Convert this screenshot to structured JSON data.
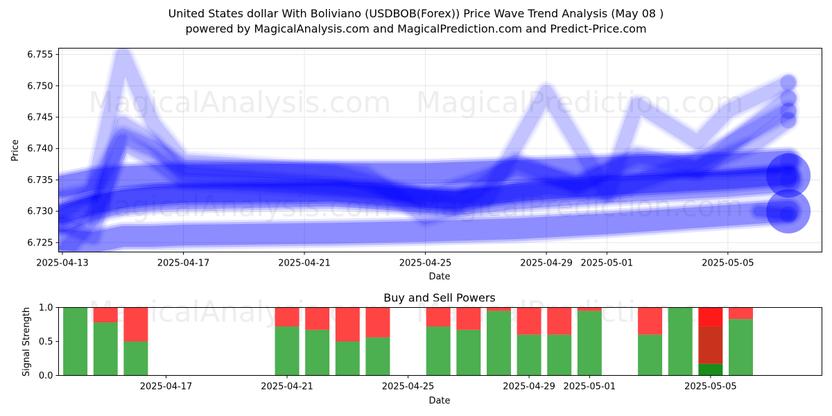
{
  "figure": {
    "title": "United States dollar With Boliviano (USDBOB(Forex)) Price Wave Trend Analysis (May 08 )",
    "subtitle": "powered by MagicalAnalysis.com and MagicalPrediction.com and Predict-Price.com",
    "watermarks": [
      "MagicalAnalysis.com",
      "MagicalPrediction.com"
    ]
  },
  "chart_data": [
    {
      "type": "line",
      "title": "",
      "xlabel": "Date",
      "ylabel": "Price",
      "xlim": [
        "2025-04-13",
        "2025-05-08"
      ],
      "ylim": [
        6.7235,
        6.756
      ],
      "x_ticks": [
        "2025-04-13",
        "2025-04-17",
        "2025-04-21",
        "2025-04-25",
        "2025-04-29",
        "2025-05-01",
        "2025-05-05"
      ],
      "y_ticks": [
        6.725,
        6.73,
        6.735,
        6.74,
        6.745,
        6.75,
        6.755
      ],
      "grid": true,
      "line_color": "#0000ff",
      "series": [
        {
          "x": [
            "2025-04-13",
            "2025-04-14",
            "2025-04-15",
            "2025-04-16",
            "2025-04-17",
            "2025-04-22",
            "2025-04-24",
            "2025-04-26",
            "2025-04-28",
            "2025-05-01",
            "2025-05-05",
            "2025-05-07"
          ],
          "values": [
            6.7295,
            6.731,
            6.732,
            6.7325,
            6.7328,
            6.733,
            6.7322,
            6.7318,
            6.733,
            6.734,
            6.735,
            6.7357
          ]
        },
        {
          "x": [
            "2025-04-13",
            "2025-04-14",
            "2025-04-15",
            "2025-04-16",
            "2025-04-17",
            "2025-04-22",
            "2025-04-24",
            "2025-04-26",
            "2025-04-28",
            "2025-05-01",
            "2025-05-05",
            "2025-05-07"
          ],
          "values": [
            6.7285,
            6.7305,
            6.7315,
            6.732,
            6.7322,
            6.7326,
            6.732,
            6.7312,
            6.7322,
            6.7332,
            6.7342,
            6.735
          ]
        },
        {
          "x": [
            "2025-04-13",
            "2025-04-14",
            "2025-04-15",
            "2025-04-16",
            "2025-04-17",
            "2025-04-22",
            "2025-04-25",
            "2025-04-28",
            "2025-05-01",
            "2025-05-05",
            "2025-05-07"
          ],
          "values": [
            6.734,
            6.735,
            6.7355,
            6.7357,
            6.7358,
            6.736,
            6.736,
            6.7365,
            6.737,
            6.7375,
            6.738
          ]
        },
        {
          "x": [
            "2025-04-13",
            "2025-04-14",
            "2025-04-15",
            "2025-04-16",
            "2025-04-17",
            "2025-04-21",
            "2025-04-24",
            "2025-04-27",
            "2025-04-29",
            "2025-05-01",
            "2025-05-04",
            "2025-05-07"
          ],
          "values": [
            6.723,
            6.729,
            6.741,
            6.7385,
            6.735,
            6.734,
            6.733,
            6.7325,
            6.734,
            6.733,
            6.738,
            6.746
          ]
        },
        {
          "x": [
            "2025-04-13",
            "2025-04-14",
            "2025-04-15",
            "2025-04-16",
            "2025-04-17",
            "2025-04-22",
            "2025-04-25",
            "2025-04-28",
            "2025-04-30",
            "2025-05-02",
            "2025-05-04",
            "2025-05-07"
          ],
          "values": [
            6.732,
            6.733,
            6.742,
            6.74,
            6.737,
            6.736,
            6.732,
            6.737,
            6.7345,
            6.738,
            6.7365,
            6.748
          ]
        },
        {
          "x": [
            "2025-04-13",
            "2025-04-14",
            "2025-04-15",
            "2025-04-16",
            "2025-04-17",
            "2025-04-20",
            "2025-04-23",
            "2025-04-25",
            "2025-04-27",
            "2025-04-29",
            "2025-05-01",
            "2025-05-02",
            "2025-05-04",
            "2025-05-05",
            "2025-05-07"
          ],
          "values": [
            6.73,
            6.733,
            6.755,
            6.744,
            6.738,
            6.737,
            6.736,
            6.729,
            6.732,
            6.749,
            6.733,
            6.747,
            6.741,
            6.746,
            6.7505
          ]
        },
        {
          "x": [
            "2025-04-13",
            "2025-04-14",
            "2025-04-15",
            "2025-04-16",
            "2025-04-17",
            "2025-04-22",
            "2025-04-24",
            "2025-04-26",
            "2025-04-28",
            "2025-04-30",
            "2025-05-02",
            "2025-05-04",
            "2025-05-06",
            "2025-05-07"
          ],
          "values": [
            6.728,
            6.726,
            6.744,
            6.741,
            6.736,
            6.734,
            6.733,
            6.731,
            6.738,
            6.734,
            6.739,
            6.737,
            6.741,
            6.7445
          ]
        },
        {
          "x": [
            "2025-04-13",
            "2025-04-14",
            "2025-04-15",
            "2025-04-16",
            "2025-04-17",
            "2025-04-22",
            "2025-04-25",
            "2025-04-28",
            "2025-05-01",
            "2025-05-04",
            "2025-05-07"
          ],
          "values": [
            6.7255,
            6.725,
            6.726,
            6.726,
            6.7262,
            6.7265,
            6.7268,
            6.7272,
            6.728,
            6.729,
            6.73
          ]
        },
        {
          "x": [
            "2025-05-06",
            "2025-05-07"
          ],
          "values": [
            6.73,
            6.7295
          ]
        }
      ]
    },
    {
      "type": "bar",
      "title": "Buy and Sell Powers",
      "xlabel": "Date",
      "ylabel": "Signal Strength",
      "ylim": [
        0,
        1
      ],
      "y_ticks": [
        0.0,
        0.5,
        1.0
      ],
      "x_ticks": [
        "2025-04-17",
        "2025-04-21",
        "2025-04-25",
        "2025-04-29",
        "2025-05-01",
        "2025-05-05"
      ],
      "colors": {
        "buy": "#4caf50",
        "sell": "#ff4444",
        "strong_buy": "#1a8c1a",
        "strong_sell": "#ff1a1a",
        "mid": "#c8331e"
      },
      "categories": [
        "2025-04-14",
        "2025-04-15",
        "2025-04-16",
        "2025-04-21",
        "2025-04-22",
        "2025-04-23",
        "2025-04-24",
        "2025-04-26",
        "2025-04-27",
        "2025-04-28",
        "2025-04-29",
        "2025-04-30",
        "2025-05-01",
        "2025-05-03",
        "2025-05-04",
        "2025-05-05",
        "2025-05-06"
      ],
      "series": [
        {
          "name": "buy",
          "values": [
            1.0,
            0.78,
            0.5,
            0.72,
            0.67,
            0.5,
            0.56,
            0.72,
            0.67,
            0.95,
            0.6,
            0.6,
            0.95,
            0.6,
            1.0,
            0.17,
            0.83
          ]
        },
        {
          "name": "sell",
          "values": [
            0.0,
            0.22,
            0.5,
            0.28,
            0.33,
            0.5,
            0.44,
            0.28,
            0.33,
            0.05,
            0.4,
            0.4,
            0.05,
            0.4,
            0.0,
            0.83,
            0.17
          ]
        }
      ]
    }
  ]
}
